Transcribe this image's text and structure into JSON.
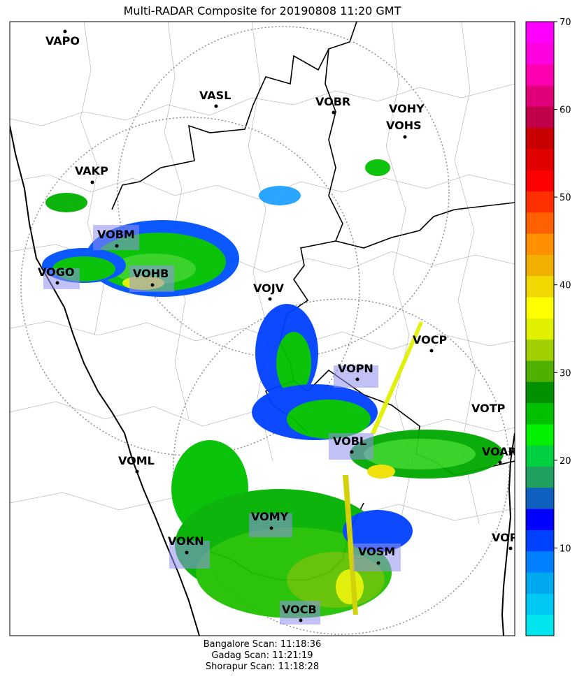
{
  "title": "Multi-RADAR Composite for 20190808 11:20 GMT",
  "footer": {
    "line1": "Bangalore Scan: 11:18:36",
    "line2": "Gadag Scan: 11:21:19",
    "line3": "Shorapur Scan: 11:18:28"
  },
  "stations": [
    "VAPO",
    "VASL",
    "VOBR",
    "VOHY",
    "VOHS",
    "VAKP",
    "VOBM",
    "VOGO",
    "VOHB",
    "VOJV",
    "VOCP",
    "VOPN",
    "VOTP",
    "VOBL",
    "VOAR",
    "VOML",
    "VOMY",
    "VOKN",
    "VOPC",
    "VOSM",
    "VOCB"
  ],
  "chart_data": {
    "type": "heatmap",
    "title": "Multi-RADAR Composite for 20190808 11:20 GMT",
    "colorbar": {
      "range": [
        0,
        70
      ],
      "ticks": [
        10,
        20,
        30,
        40,
        50,
        60,
        70
      ],
      "colors": [
        "#00e5ee",
        "#00c8f5",
        "#00a8f0",
        "#0080ff",
        "#0040ff",
        "#0000ff",
        "#1060c0",
        "#20a060",
        "#00d040",
        "#00f000",
        "#00c000",
        "#009000",
        "#50b000",
        "#a0d000",
        "#e0f000",
        "#ffff00",
        "#f0d800",
        "#f0b000",
        "#ff9000",
        "#ff6000",
        "#ff3000",
        "#ff0000",
        "#e00000",
        "#c80000",
        "#c0004a",
        "#e0007a",
        "#ff00b0",
        "#ff00e0",
        "#ff00ff"
      ]
    },
    "stations": [
      {
        "name": "VAPO",
        "lat": 18.58,
        "lon": 73.92
      },
      {
        "name": "VASL",
        "lat": 17.63,
        "lon": 75.93
      },
      {
        "name": "VOBR",
        "lat": 17.91,
        "lon": 77.49
      },
      {
        "name": "VOHY",
        "lat": 17.45,
        "lon": 78.46
      },
      {
        "name": "VOHS",
        "lat": 17.24,
        "lon": 78.43
      },
      {
        "name": "VAKP",
        "lat": 16.66,
        "lon": 74.29
      },
      {
        "name": "VOBM",
        "lat": 15.86,
        "lon": 74.62
      },
      {
        "name": "VOGO",
        "lat": 15.38,
        "lon": 73.83
      },
      {
        "name": "VOHB",
        "lat": 15.36,
        "lon": 75.08
      },
      {
        "name": "VOJV",
        "lat": 15.18,
        "lon": 76.63
      },
      {
        "name": "VOCP",
        "lat": 14.51,
        "lon": 78.77
      },
      {
        "name": "VOPN",
        "lat": 14.15,
        "lon": 77.79
      },
      {
        "name": "VOTP",
        "lat": 13.63,
        "lon": 79.54
      },
      {
        "name": "VOBL",
        "lat": 13.2,
        "lon": 77.71
      },
      {
        "name": "VOAR",
        "lat": 12.91,
        "lon": 79.41
      },
      {
        "name": "VOML",
        "lat": 12.96,
        "lon": 74.89
      },
      {
        "name": "VOMY",
        "lat": 12.23,
        "lon": 76.65
      },
      {
        "name": "VOKN",
        "lat": 11.92,
        "lon": 75.55
      },
      {
        "name": "VOPC",
        "lat": 11.97,
        "lon": 79.81
      },
      {
        "name": "VOSM",
        "lat": 11.78,
        "lon": 78.06
      },
      {
        "name": "VOCB",
        "lat": 11.03,
        "lon": 77.04
      }
    ],
    "radars": [
      "Bangalore",
      "Gadag",
      "Shorapur"
    ],
    "scan_times": {
      "Bangalore": "11:18:36",
      "Gadag": "11:21:19",
      "Shorapur": "11:18:28"
    }
  }
}
